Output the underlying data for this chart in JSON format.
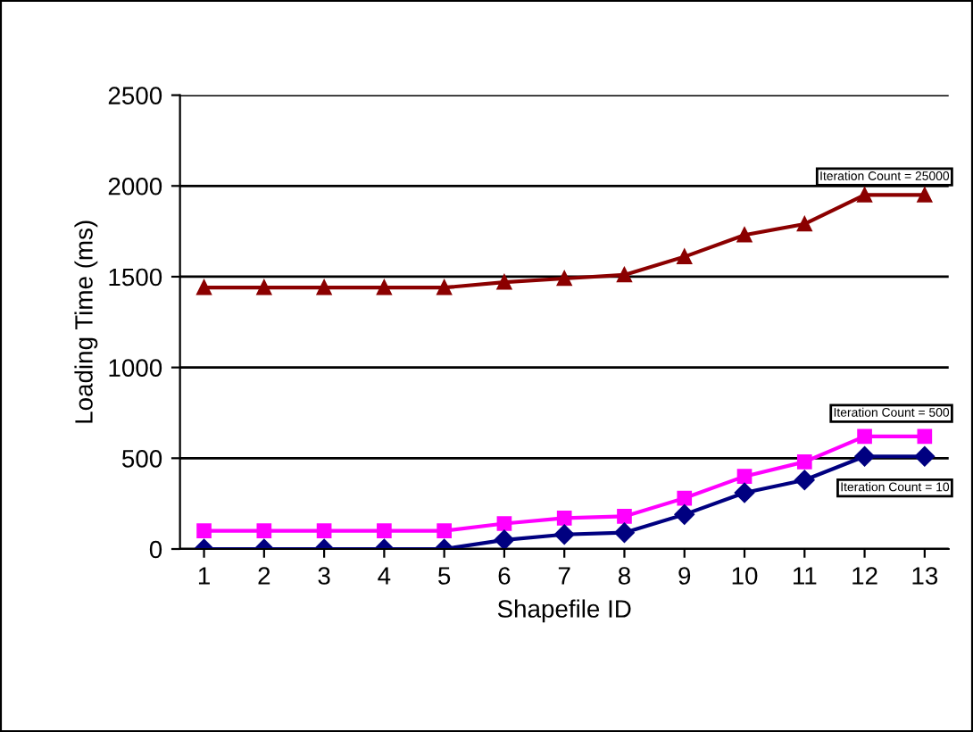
{
  "chart_data": {
    "type": "line",
    "xlabel": "Shapefile ID",
    "ylabel": "Loading Time (ms)",
    "categories": [
      "1",
      "2",
      "3",
      "4",
      "5",
      "6",
      "7",
      "8",
      "9",
      "10",
      "11",
      "12",
      "13"
    ],
    "ylim": [
      0,
      2500
    ],
    "yticks": [
      0,
      500,
      1000,
      1500,
      2000,
      2500
    ],
    "grid": "y",
    "legend": false,
    "series": [
      {
        "name": "Iteration Count = 25000",
        "color": "#8b0000",
        "marker": "triangle",
        "values": [
          1440,
          1440,
          1440,
          1440,
          1440,
          1470,
          1490,
          1510,
          1610,
          1730,
          1790,
          1950,
          1950
        ]
      },
      {
        "name": "Iteration Count = 500",
        "color": "#ff00ff",
        "marker": "square",
        "values": [
          100,
          100,
          100,
          100,
          100,
          140,
          170,
          180,
          280,
          400,
          480,
          620,
          620
        ]
      },
      {
        "name": "Iteration Count = 10",
        "color": "#000080",
        "marker": "diamond",
        "values": [
          0,
          0,
          0,
          0,
          0,
          50,
          80,
          90,
          190,
          310,
          380,
          510,
          510
        ]
      }
    ]
  }
}
